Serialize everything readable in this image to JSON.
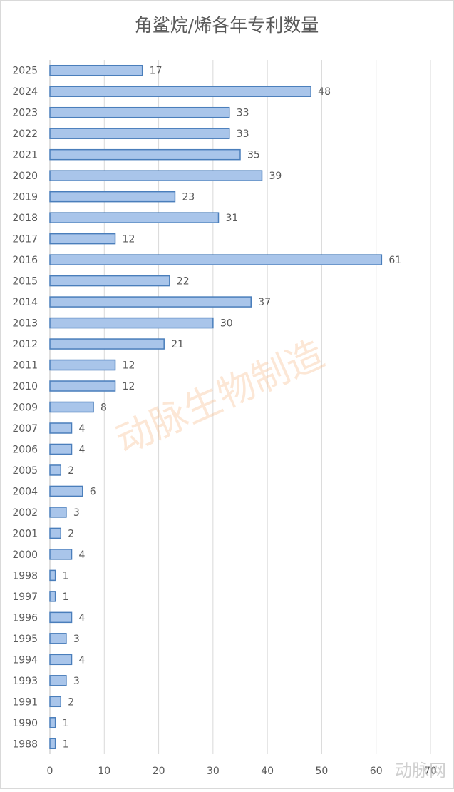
{
  "chart_data": {
    "type": "bar",
    "orientation": "horizontal",
    "title": "角鲨烷/烯各年专利数量",
    "categories": [
      "2025",
      "2024",
      "2023",
      "2022",
      "2021",
      "2020",
      "2019",
      "2018",
      "2017",
      "2016",
      "2015",
      "2014",
      "2013",
      "2012",
      "2011",
      "2010",
      "2009",
      "2007",
      "2006",
      "2005",
      "2004",
      "2002",
      "2001",
      "2000",
      "1998",
      "1997",
      "1996",
      "1995",
      "1994",
      "1993",
      "1991",
      "1990",
      "1988"
    ],
    "values": [
      17,
      48,
      33,
      33,
      35,
      39,
      23,
      31,
      12,
      61,
      22,
      37,
      30,
      21,
      12,
      12,
      8,
      4,
      4,
      2,
      6,
      3,
      2,
      4,
      1,
      1,
      4,
      3,
      4,
      3,
      2,
      1,
      1
    ],
    "color": "#a9c5ea",
    "edge_color": "#4a7ebb",
    "xlim": [
      0,
      70
    ],
    "xticks": [
      0,
      10,
      20,
      30,
      40,
      50,
      60,
      70
    ],
    "grid": true,
    "watermarks": [
      "动脉生物制造",
      "动脉网"
    ]
  }
}
